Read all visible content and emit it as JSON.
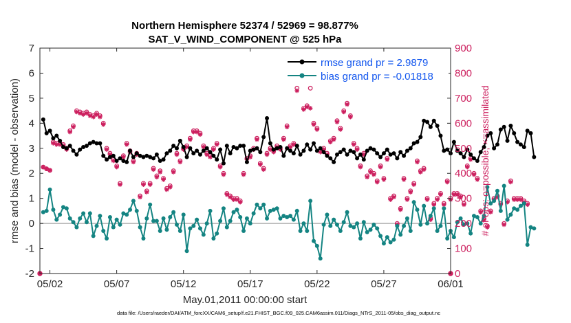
{
  "chart_data": {
    "type": "line",
    "title": "Northern Hemisphere 52374 / 52969 = 98.877%",
    "subtitle": "SAT_V_WIND_COMPONENT @ 525 hPa",
    "xlabel": "May.01,2011 00:00:00 start",
    "ylabel": "rmse and bias (model - observation)",
    "ylabel_right": "# of obs: o=possible; ×=assimilated",
    "footnote": "data file: /Users/raeder/DAI/ATM_forcXX/CAM6_setup/f.e21.FHIST_BGC.f09_025.CAM6assim.011/Diags_NTrS_2011-05/obs_diag_output.nc",
    "xlim": [
      0.75,
      31.5
    ],
    "ylim": [
      -2,
      7
    ],
    "ylim_right": [
      0,
      900
    ],
    "x_ticks": [
      1.5,
      6.5,
      11.5,
      16.5,
      21.5,
      26.5,
      31.5
    ],
    "x_tick_labels": [
      "05/02",
      "05/07",
      "05/12",
      "05/17",
      "05/22",
      "05/27",
      "06/01"
    ],
    "y_ticks": [
      -2,
      -1,
      0,
      1,
      2,
      3,
      4,
      5,
      6,
      7
    ],
    "y_right_ticks": [
      0,
      100,
      200,
      300,
      400,
      500,
      600,
      700,
      800,
      900
    ],
    "zero_line": 0,
    "legend_position": "top-right",
    "colors": {
      "rmse": "#000000",
      "bias": "#148482",
      "obs": "#cc1f5e",
      "zero": "#b0b0b0",
      "legend_text": "#1155ee"
    },
    "time_start": 1.0,
    "time_step": 0.25,
    "series": [
      {
        "name": "rmse grand pr = 2.9879",
        "key": "rmse",
        "axis": "left",
        "values": [
          4.15,
          3.6,
          3.7,
          3.4,
          3.5,
          3.3,
          3.05,
          3.0,
          3.1,
          2.9,
          2.75,
          2.95,
          3.05,
          3.1,
          3.2,
          3.25,
          3.2,
          3.2,
          2.7,
          2.55,
          2.65,
          2.7,
          2.5,
          2.6,
          2.5,
          2.45,
          2.9,
          2.65,
          2.8,
          2.7,
          2.65,
          2.7,
          2.65,
          2.6,
          2.75,
          2.5,
          2.55,
          2.8,
          2.9,
          3.1,
          3.0,
          3.3,
          3.05,
          2.65,
          3.0,
          2.8,
          2.9,
          2.75,
          2.9,
          3.0,
          2.85,
          2.7,
          2.55,
          2.95,
          2.4,
          3.1,
          2.8,
          3.05,
          3.0,
          3.1,
          3.1,
          2.45,
          2.9,
          2.95,
          3.0,
          2.85,
          3.45,
          4.2,
          3.2,
          2.95,
          3.0,
          3.05,
          2.7,
          3.0,
          2.9,
          2.8,
          3.1,
          2.75,
          2.9,
          3.15,
          2.95,
          3.2,
          2.9,
          3.0,
          2.85,
          2.7,
          2.6,
          2.45,
          2.75,
          2.85,
          2.95,
          2.75,
          2.9,
          2.85,
          2.6,
          2.75,
          2.55,
          2.9,
          3.0,
          2.95,
          2.8,
          2.65,
          2.8,
          2.95,
          2.75,
          2.8,
          2.6,
          2.85,
          2.7,
          2.9,
          3.0,
          3.2,
          3.25,
          3.45,
          4.1,
          4.05,
          3.85,
          4.1,
          3.9,
          3.5,
          2.9,
          2.95,
          2.8,
          3.25,
          2.9,
          2.8,
          2.65,
          2.95,
          2.75,
          2.6,
          2.5,
          2.85,
          3.05,
          3.5,
          3.6,
          3.0,
          3.15,
          3.75,
          3.85,
          3.3,
          3.9,
          3.6,
          3.25,
          3.15,
          3.05,
          3.7,
          3.6,
          2.65
        ],
        "color": "#000000",
        "marker": "dot"
      },
      {
        "name": "bias grand pr = -0.01818",
        "key": "bias",
        "axis": "left",
        "values": [
          0.45,
          0.5,
          1.35,
          0.55,
          0.15,
          0.35,
          0.65,
          0.6,
          0.2,
          0.05,
          -0.15,
          0.2,
          0.4,
          0.05,
          0.4,
          -0.5,
          -0.1,
          0.3,
          -0.3,
          -0.6,
          0.25,
          -0.15,
          0.15,
          -0.05,
          0.4,
          0.35,
          0.55,
          0.9,
          0.5,
          -0.15,
          -0.6,
          0.2,
          0.75,
          0.1,
          0.1,
          -0.3,
          0.2,
          -0.25,
          0.25,
          0.45,
          -0.05,
          -0.3,
          0.35,
          -1.1,
          -0.2,
          -0.1,
          0.15,
          -0.2,
          -0.45,
          0.0,
          0.5,
          -0.6,
          -0.4,
          0.1,
          0.6,
          -0.15,
          0.1,
          0.45,
          0.55,
          0.25,
          -0.3,
          0.2,
          0.0,
          0.4,
          0.75,
          0.6,
          0.75,
          0.2,
          0.5,
          0.55,
          0.6,
          0.2,
          0.3,
          0.25,
          0.3,
          0.15,
          0.5,
          -0.3,
          0.0,
          -0.3,
          0.9,
          -0.7,
          -0.9,
          -1.4,
          -0.05,
          0.35,
          -0.1,
          0.15,
          -0.05,
          -0.3,
          0.05,
          0.45,
          -0.1,
          -0.15,
          0.0,
          -0.6,
          0.05,
          -0.35,
          -0.25,
          -0.05,
          -0.2,
          -0.5,
          -0.8,
          -0.55,
          -0.75,
          -0.65,
          -0.1,
          -0.45,
          -0.1,
          0.2,
          -0.3,
          0.85,
          0.55,
          -0.05,
          0.7,
          0.0,
          0.3,
          0.6,
          -0.3,
          -0.1,
          0.6,
          -0.6,
          -0.3,
          -0.55,
          0.05,
          0.2,
          -0.05,
          0.0,
          -0.4,
          0.3,
          0.25,
          0.0,
          0.3,
          1.45,
          0.8,
          0.9,
          1.3,
          0.5,
          1.5,
          0.15,
          0.35,
          0.6,
          0.55,
          0.7,
          0.8,
          -0.85,
          -0.15,
          -0.2
        ],
        "color": "#148482",
        "marker": "dot"
      },
      {
        "name": "obs possible",
        "key": "possible",
        "axis": "right",
        "values": [
          425,
          418,
          412,
          525,
          520,
          520,
          515,
          500,
          570,
          590,
          650,
          645,
          640,
          645,
          635,
          630,
          640,
          630,
          600,
          500,
          480,
          455,
          430,
          360,
          470,
          520,
          490,
          450,
          480,
          310,
          360,
          330,
          360,
          420,
          390,
          410,
          380,
          340,
          350,
          410,
          480,
          450,
          500,
          510,
          540,
          570,
          570,
          560,
          510,
          480,
          470,
          500,
          520,
          430,
          400,
          320,
          310,
          300,
          300,
          290,
          400,
          460,
          470,
          500,
          540,
          440,
          420,
          480,
          500,
          490,
          510,
          500,
          540,
          590,
          510,
          520,
          740,
          830,
          660,
          670,
          740,
          600,
          580,
          490,
          500,
          480,
          530,
          540,
          610,
          580,
          650,
          680,
          630,
          520,
          500,
          430,
          480,
          390,
          410,
          400,
          370,
          430,
          380,
          460,
          300,
          310,
          200,
          260,
          380,
          300,
          330,
          360,
          450,
          410,
          420,
          300,
          220,
          280,
          300,
          320,
          280,
          370,
          300,
          320,
          320,
          310,
          280,
          430,
          460,
          400,
          380,
          250,
          220,
          190,
          250,
          300,
          310,
          280,
          200,
          290,
          370,
          300,
          300,
          300,
          290,
          280
        ],
        "color": "#cc1f5e",
        "marker": "circle"
      },
      {
        "name": "obs assimilated",
        "key": "assimilated",
        "axis": "right",
        "values": [
          425,
          418,
          412,
          520,
          515,
          515,
          510,
          495,
          565,
          585,
          645,
          640,
          635,
          640,
          630,
          625,
          635,
          625,
          595,
          495,
          475,
          450,
          425,
          355,
          465,
          515,
          485,
          445,
          475,
          305,
          355,
          325,
          355,
          415,
          385,
          405,
          375,
          335,
          345,
          405,
          475,
          445,
          495,
          505,
          535,
          565,
          565,
          555,
          505,
          475,
          465,
          495,
          515,
          425,
          395,
          315,
          305,
          295,
          295,
          285,
          395,
          455,
          465,
          495,
          535,
          435,
          415,
          475,
          495,
          485,
          505,
          495,
          535,
          585,
          505,
          515,
          730,
          800,
          655,
          665,
          660,
          595,
          575,
          485,
          495,
          475,
          525,
          535,
          605,
          575,
          645,
          675,
          625,
          515,
          495,
          425,
          475,
          385,
          405,
          395,
          365,
          425,
          375,
          455,
          295,
          305,
          195,
          255,
          375,
          295,
          325,
          355,
          445,
          405,
          415,
          295,
          215,
          275,
          295,
          315,
          275,
          365,
          295,
          315,
          315,
          305,
          275,
          425,
          455,
          395,
          375,
          245,
          215,
          185,
          245,
          295,
          305,
          275,
          195,
          285,
          365,
          295,
          295,
          295,
          285,
          275
        ],
        "color": "#cc1f5e",
        "marker": "star"
      }
    ],
    "edge_markers": [
      {
        "x": 0.75,
        "y_right": 0
      },
      {
        "x": 31.5,
        "y_right": 0
      }
    ]
  }
}
